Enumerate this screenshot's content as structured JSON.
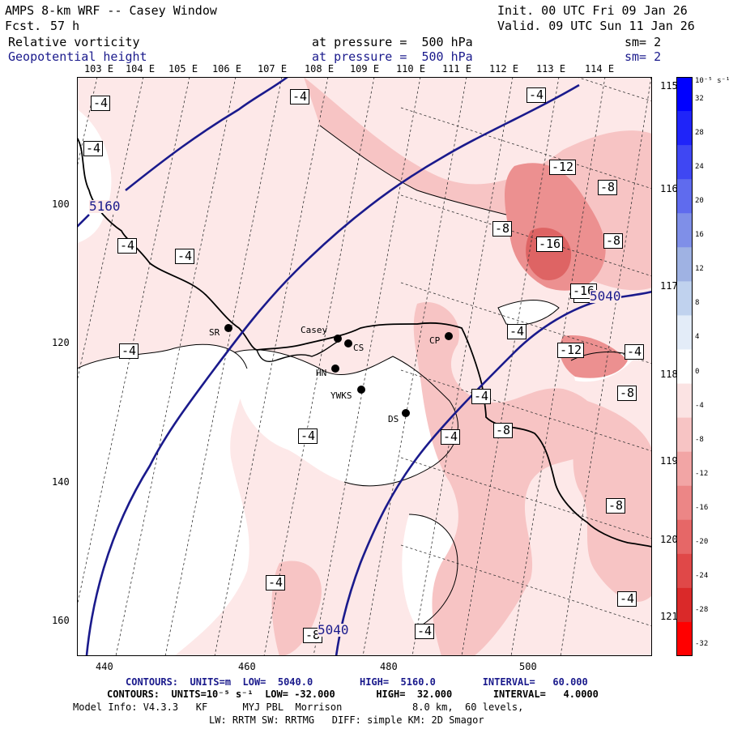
{
  "header": {
    "model": "AMPS 8-km WRF -- Casey Window",
    "fcst_label": "Fcst.",
    "fcst_value": "57 h",
    "init": "Init. 00 UTC Fri 09 Jan 26",
    "valid": "Valid. 09 UTC Sun 11 Jan 26",
    "field1_name": "Relative vorticity",
    "field1_pressure": "at pressure =  500 hPa",
    "field1_sm": "sm= 2",
    "field2_name": "Geopotential height",
    "field2_pressure": "at pressure =  500 hPa",
    "field2_sm": "sm= 2"
  },
  "lon_labels": [
    "103 E",
    "104 E",
    "105 E",
    "106 E",
    "107 E",
    "108 E",
    "109 E",
    "110 E",
    "111 E",
    "112 E",
    "113 E",
    "114 E"
  ],
  "lat_labels": [
    "115 E",
    "116 E",
    "117 E",
    "118 E",
    "119 E",
    "120 E",
    "121 E"
  ],
  "y_ticks": [
    "100",
    "120",
    "140",
    "160"
  ],
  "x_ticks": [
    "440",
    "460",
    "480",
    "500"
  ],
  "stations": [
    {
      "name": "Casey"
    },
    {
      "name": "CS"
    },
    {
      "name": "SR"
    },
    {
      "name": "HN"
    },
    {
      "name": "YWKS"
    },
    {
      "name": "DS"
    },
    {
      "name": "CP"
    }
  ],
  "vort_labels": [
    "-4",
    "-4",
    "-4",
    "-4",
    "-4",
    "-4",
    "-4",
    "-4",
    "-4",
    "-4",
    "-4",
    "-4",
    "-4",
    "-4",
    "-4",
    "-12",
    "-12",
    "-8",
    "-8",
    "-8",
    "-8",
    "-8",
    "-8",
    "-8",
    "-8",
    "-16",
    "-16"
  ],
  "height_labels": [
    "5160",
    "5040",
    "5040"
  ],
  "colorbar": {
    "units": "10⁻⁵ s⁻¹",
    "levels": [
      "32",
      "28",
      "24",
      "20",
      "16",
      "12",
      "8",
      "4",
      "0",
      "-4",
      "-8",
      "-12",
      "-16",
      "-20",
      "-24",
      "-28",
      "-32"
    ]
  },
  "footer": {
    "contours_height": "CONTOURS:  UNITS=m  LOW=  5040.0        HIGH=  5160.0        INTERVAL=   60.000",
    "contours_vort": "CONTOURS:  UNITS=10⁻⁵ s⁻¹  LOW= -32.000       HIGH=  32.000       INTERVAL=   4.0000",
    "model_info": "Model Info: V4.3.3   KF      MYJ PBL  Morrison            8.0 km,  60 levels,",
    "physics": "LW: RRTM SW: RRTMG   DIFF: simple KM: 2D Smagor"
  },
  "colors": {
    "height_contour": "#1a1a8c",
    "light_fill": "#fde8e8",
    "mid_fill": "#f7c4c4",
    "strong_fill": "#ec9090",
    "strongest_fill": "#de6464"
  }
}
